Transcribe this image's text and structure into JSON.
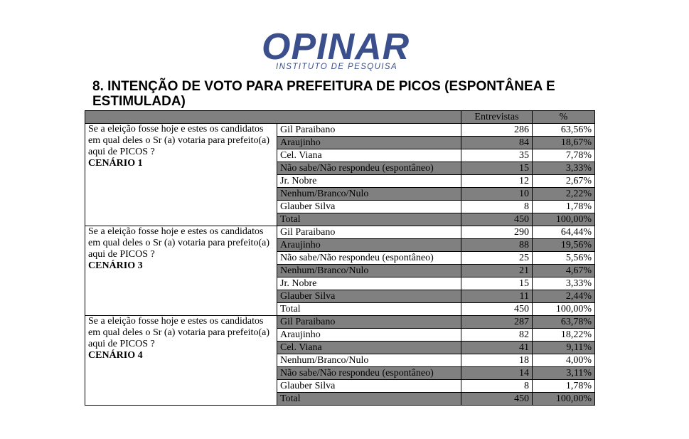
{
  "logo": {
    "name": "OPINAR",
    "subtitle": "INSTITUTO DE PESQUISA",
    "color": "#3b4f8c",
    "accent_color": "#e8821e"
  },
  "title": "8. INTENÇÃO DE VOTO PARA PREFEITURA DE PICOS (ESPONTÂNEA E ESTIMULADA)",
  "table": {
    "col_entrevistas": "Entrevistas",
    "col_pct": "%",
    "question": "Se a eleição fosse hoje e estes os candidatos em qual deles o Sr (a) votaria para prefeito(a) aqui de PICOS ?",
    "scenarios": [
      {
        "label": "CENÁRIO 1",
        "rows": [
          {
            "option": "Gil Paraibano",
            "n": "286",
            "pct": "63,56%"
          },
          {
            "option": "Araujinho",
            "n": "84",
            "pct": "18,67%"
          },
          {
            "option": "Cel. Viana",
            "n": "35",
            "pct": "7,78%"
          },
          {
            "option": "Não sabe/Não respondeu (espontâneo)",
            "n": "15",
            "pct": "3,33%"
          },
          {
            "option": "Jr. Nobre",
            "n": "12",
            "pct": "2,67%"
          },
          {
            "option": "Nenhum/Branco/Nulo",
            "n": "10",
            "pct": "2,22%"
          },
          {
            "option": "Glauber Silva",
            "n": "8",
            "pct": "1,78%"
          },
          {
            "option": "Total",
            "n": "450",
            "pct": "100,00%"
          }
        ]
      },
      {
        "label": "CENÁRIO 3",
        "rows": [
          {
            "option": "Gil Paraibano",
            "n": "290",
            "pct": "64,44%"
          },
          {
            "option": "Araujinho",
            "n": "88",
            "pct": "19,56%"
          },
          {
            "option": "Não sabe/Não respondeu (espontâneo)",
            "n": "25",
            "pct": "5,56%"
          },
          {
            "option": "Nenhum/Branco/Nulo",
            "n": "21",
            "pct": "4,67%"
          },
          {
            "option": "Jr. Nobre",
            "n": "15",
            "pct": "3,33%"
          },
          {
            "option": "Glauber Silva",
            "n": "11",
            "pct": "2,44%"
          },
          {
            "option": "Total",
            "n": "450",
            "pct": "100,00%"
          }
        ]
      },
      {
        "label": "CENÁRIO 4",
        "rows": [
          {
            "option": "Gil Paraibano",
            "n": "287",
            "pct": "63,78%"
          },
          {
            "option": "Araujinho",
            "n": "82",
            "pct": "18,22%"
          },
          {
            "option": "Cel. Viana",
            "n": "41",
            "pct": "9,11%"
          },
          {
            "option": "Nenhum/Branco/Nulo",
            "n": "18",
            "pct": "4,00%"
          },
          {
            "option": "Não sabe/Não respondeu (espontâneo)",
            "n": "14",
            "pct": "3,11%"
          },
          {
            "option": "Glauber Silva",
            "n": "8",
            "pct": "1,78%"
          },
          {
            "option": "Total",
            "n": "450",
            "pct": "100,00%"
          }
        ]
      }
    ]
  }
}
